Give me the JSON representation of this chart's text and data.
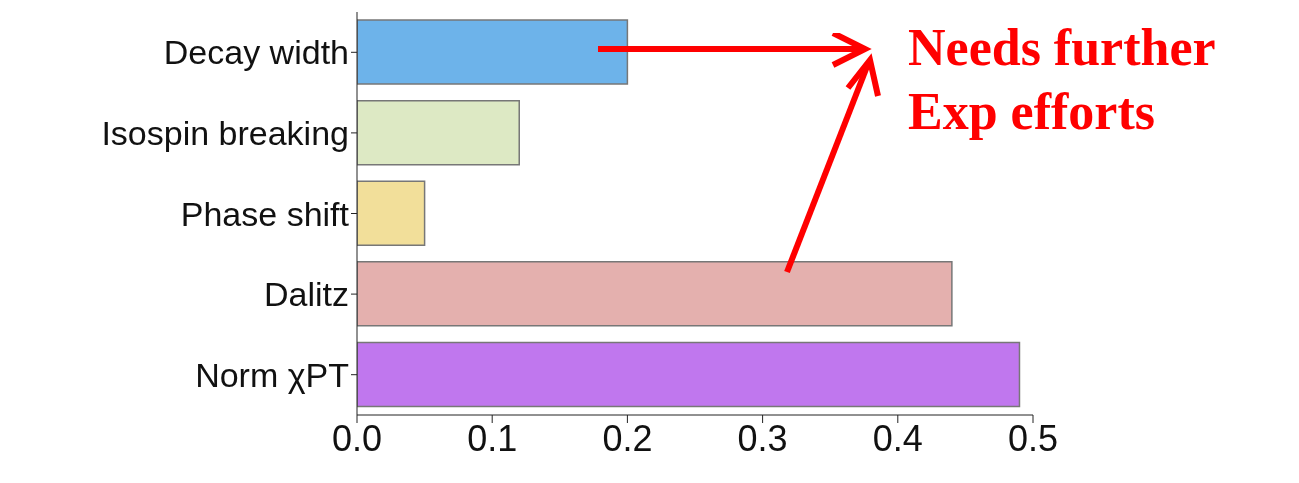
{
  "chart_data": {
    "type": "bar",
    "orientation": "horizontal",
    "categories": [
      "Decay width",
      "Isospin breaking",
      "Phase shift",
      "Dalitz",
      "Norm χPT"
    ],
    "values": [
      0.2,
      0.12,
      0.05,
      0.44,
      0.49
    ],
    "colors": [
      "#6db3ea",
      "#dde9c4",
      "#f2df9a",
      "#e4b0ae",
      "#c077ee"
    ],
    "xlim": [
      0,
      0.5
    ],
    "xticks": [
      {
        "value": 0,
        "label": "0.0"
      },
      0.1,
      0.2,
      0.3,
      0.4,
      0.5
    ],
    "grid": false,
    "annotations": [
      "Needs further Exp efforts"
    ]
  }
}
